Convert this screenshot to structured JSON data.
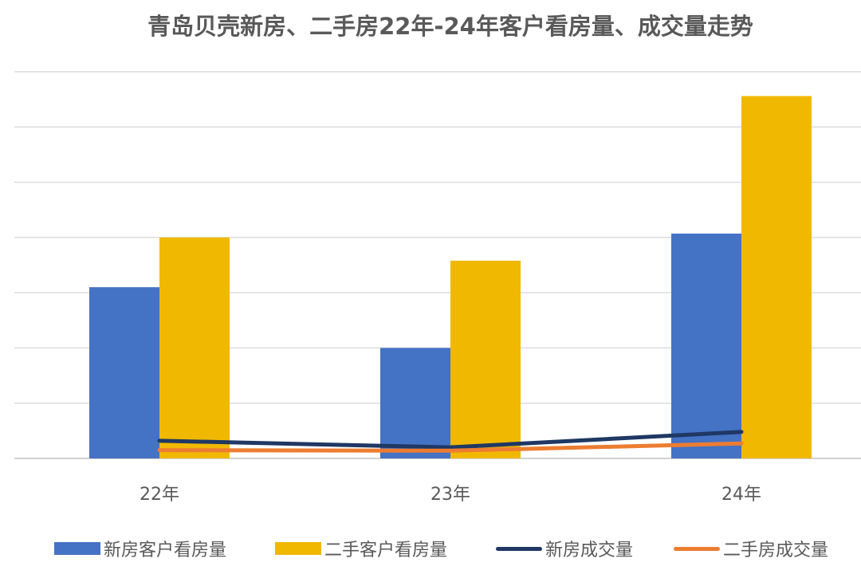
{
  "chart_data": {
    "type": "bar",
    "title": "青岛贝壳新房、二手房22年-24年客户看房量、成交量走势",
    "categories": [
      "22年",
      "23年",
      "24年"
    ],
    "ylim": [
      0,
      7
    ],
    "grid": true,
    "legend_position": "bottom",
    "series": [
      {
        "name": "新房客户看房量",
        "kind": "bar",
        "color": "#4472C4",
        "values": [
          3.1,
          2.0,
          4.07
        ]
      },
      {
        "name": "二手客户看房量",
        "kind": "bar",
        "color": "#F0B800",
        "values": [
          4.0,
          3.58,
          6.56
        ]
      },
      {
        "name": "新房成交量",
        "kind": "line",
        "color": "#1F3864",
        "values": [
          0.32,
          0.2,
          0.48
        ]
      },
      {
        "name": "二手房成交量",
        "kind": "line",
        "color": "#ED7D31",
        "values": [
          0.15,
          0.14,
          0.27
        ]
      }
    ]
  }
}
